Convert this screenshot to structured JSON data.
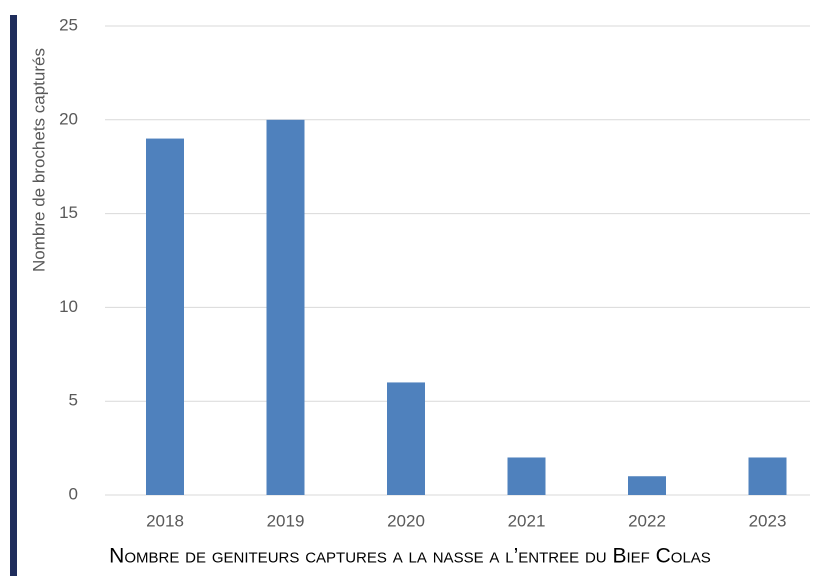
{
  "chart_data": {
    "type": "bar",
    "title": "Nombre de geniteurs captures a la nasse a l’entree du Bief Colas",
    "y_label": "Nombre de brochets capturés",
    "categories": [
      "2018",
      "2019",
      "2020",
      "2021",
      "2022",
      "2023"
    ],
    "values": [
      19,
      20,
      6,
      2,
      1,
      2
    ],
    "color": "#4f81bd",
    "ylim": [
      0,
      25
    ],
    "yticks": [
      0,
      5,
      10,
      15,
      20,
      25
    ],
    "grid": true
  }
}
